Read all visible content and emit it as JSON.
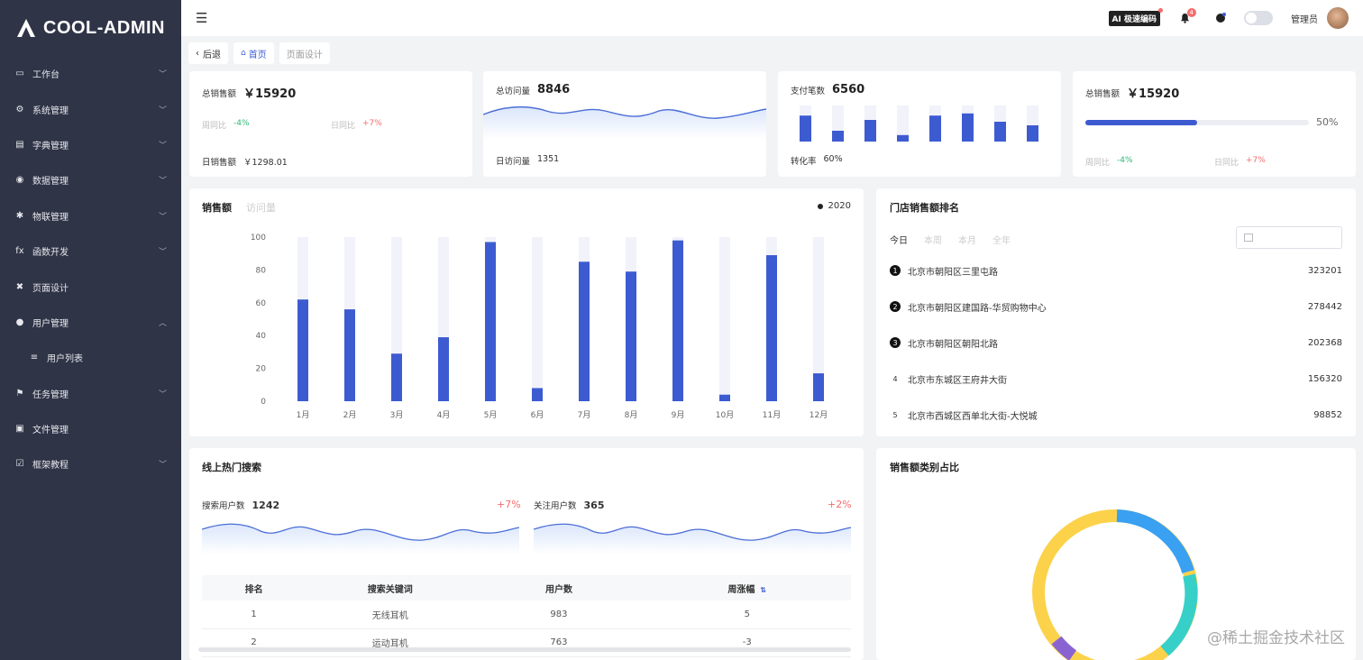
{
  "app": {
    "logo_text": "COOL-ADMIN"
  },
  "sidebar": {
    "items": [
      {
        "icon": "monitor-icon",
        "label": "工作台",
        "expand": "down"
      },
      {
        "icon": "gear-icon",
        "label": "系统管理",
        "expand": "down"
      },
      {
        "icon": "book-icon",
        "label": "字典管理",
        "expand": "down"
      },
      {
        "icon": "database-icon",
        "label": "数据管理",
        "expand": "down"
      },
      {
        "icon": "iot-icon",
        "label": "物联管理",
        "expand": "down"
      },
      {
        "icon": "function-icon",
        "label": "函数开发",
        "expand": "down"
      },
      {
        "icon": "tools-icon",
        "label": "页面设计",
        "expand": ""
      },
      {
        "icon": "user-icon",
        "label": "用户管理",
        "expand": "up"
      },
      {
        "icon": "list-icon",
        "label": "用户列表",
        "expand": "",
        "sub": true
      },
      {
        "icon": "task-icon",
        "label": "任务管理",
        "expand": "down"
      },
      {
        "icon": "file-icon",
        "label": "文件管理",
        "expand": ""
      },
      {
        "icon": "checkbox-icon",
        "label": "框架教程",
        "expand": "down"
      }
    ]
  },
  "topbar": {
    "ai_badge": "AI 极速编码",
    "notification_count": "4",
    "username": "管理员"
  },
  "tabs": [
    {
      "label": "后退"
    },
    {
      "label": "首页"
    },
    {
      "label": "页面设计"
    }
  ],
  "stats": {
    "card1": {
      "label": "总销售额",
      "value": "￥15920",
      "week_label": "周同比",
      "week_value": "-4%",
      "day_label": "日同比",
      "day_value": "+7%",
      "footer_label": "日销售额",
      "footer_value": "￥1298.01"
    },
    "card2": {
      "label": "总访问量",
      "value": "8846",
      "footer_label": "日访问量",
      "footer_value": "1351"
    },
    "card3": {
      "label": "支付笔数",
      "value": "6560",
      "footer_label": "转化率",
      "footer_value": "60%",
      "bars": [
        0.72,
        0.3,
        0.6,
        0.18,
        0.72,
        0.78,
        0.55,
        0.45
      ]
    },
    "card4": {
      "label": "总销售额",
      "value": "￥15920",
      "progress": 0.5,
      "progress_text": "50%",
      "week_label": "周同比",
      "week_value": "-4%",
      "day_label": "日同比",
      "day_value": "+7%"
    }
  },
  "sales_chart": {
    "tab_active": "销售额",
    "tab_inactive": "访问量",
    "legend": "2020"
  },
  "chart_data": {
    "type": "bar",
    "categories": [
      "1月",
      "2月",
      "3月",
      "4月",
      "5月",
      "6月",
      "7月",
      "8月",
      "9月",
      "10月",
      "11月",
      "12月"
    ],
    "values": [
      62,
      56,
      29,
      39,
      97,
      8,
      85,
      79,
      98,
      4,
      89,
      17
    ],
    "background_value": 100,
    "ylim": [
      0,
      100
    ],
    "yticks": [
      "0",
      "20",
      "40",
      "60",
      "80",
      "100"
    ],
    "series": [
      {
        "name": "2020",
        "values": [
          62,
          56,
          29,
          39,
          97,
          8,
          85,
          79,
          98,
          4,
          89,
          17
        ]
      }
    ],
    "colors": {
      "bar": "#3d5bd1",
      "background": "#f1f2fa"
    }
  },
  "ranking": {
    "title": "门店销售额排名",
    "periods": [
      "今日",
      "本周",
      "本月",
      "全年"
    ],
    "rows": [
      {
        "rank": "1",
        "name": "北京市朝阳区三里屯路",
        "value": "323201"
      },
      {
        "rank": "2",
        "name": "北京市朝阳区建国路-华贸购物中心",
        "value": "278442"
      },
      {
        "rank": "3",
        "name": "北京市朝阳区朝阳北路",
        "value": "202368"
      },
      {
        "rank": "4",
        "name": "北京市东城区王府井大街",
        "value": "156320"
      },
      {
        "rank": "5",
        "name": "北京市西城区西单北大街-大悦城",
        "value": "98852"
      }
    ]
  },
  "hot_search": {
    "title": "线上热门搜索",
    "search_users_label": "搜索用户数",
    "search_users_value": "1242",
    "search_users_change": "+7%",
    "follow_users_label": "关注用户数",
    "follow_users_value": "365",
    "follow_users_change": "+2%",
    "columns": [
      "排名",
      "搜索关键词",
      "用户数",
      "周涨幅"
    ],
    "rows": [
      {
        "rank": "1",
        "keyword": "无线耳机",
        "users": "983",
        "change": "5"
      },
      {
        "rank": "2",
        "keyword": "运动耳机",
        "users": "763",
        "change": "-3"
      }
    ]
  },
  "category": {
    "title": "销售额类别占比"
  },
  "watermark": "@稀土掘金技术社区",
  "colors": {
    "accent": "#3d5bd1",
    "sidebar": "#2f3447",
    "green": "#2eb872",
    "red": "#f56c6c"
  }
}
